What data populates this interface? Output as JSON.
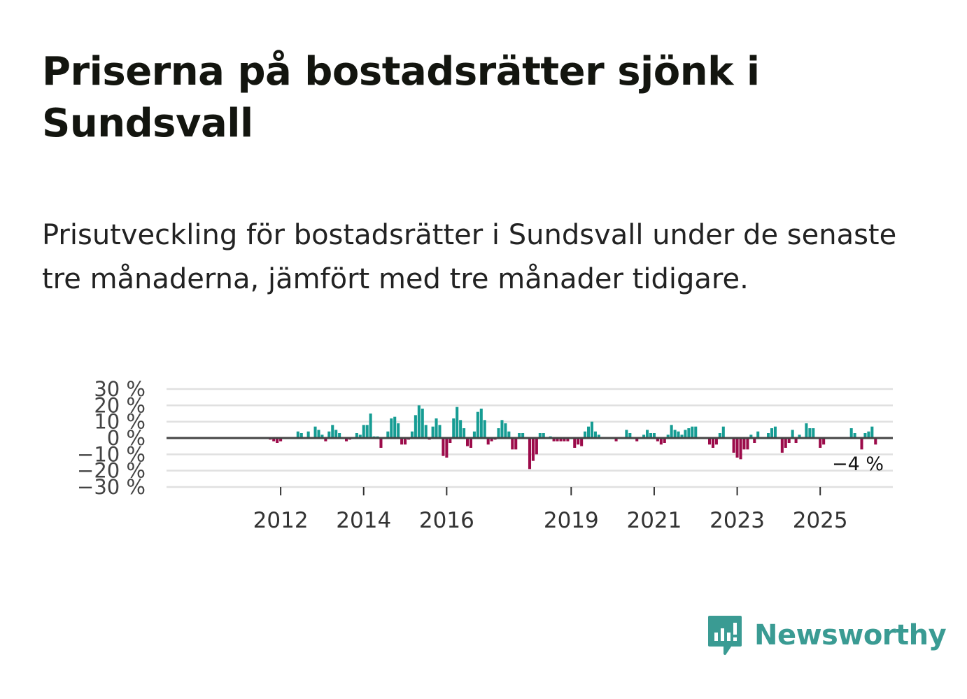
{
  "title": "Priserna på bostadsrätter sjönk i Sundsvall",
  "subtitle": "Prisutveckling för bostadsrätter i Sundsvall under de senaste tre månaderna, jämfört med tre månader tidigare.",
  "brand": {
    "name": "Newsworthy",
    "icon": "newsworthy-logo-icon"
  },
  "colors": {
    "positive": "#169c93",
    "negative": "#9c0b4a",
    "grid": "#e0e0e0",
    "zero_line": "#444444",
    "brand": "#3a9b93"
  },
  "chart_data": {
    "type": "bar",
    "title": "",
    "xlabel": "",
    "ylabel": "",
    "ylim": [
      -30,
      30
    ],
    "y_ticks": [
      30,
      20,
      10,
      0,
      -10,
      -20,
      -30
    ],
    "y_tick_labels": [
      "30 %",
      "20 %",
      "10 %",
      "0 %",
      "−10 %",
      "−20 %",
      "−30 %"
    ],
    "x_ticks": [
      2012,
      2014,
      2016,
      2019,
      2021,
      2023,
      2025
    ],
    "x_tick_labels": [
      "2012",
      "2014",
      "2016",
      "2019",
      "2021",
      "2023",
      "2025"
    ],
    "x_range_years": [
      2009.25,
      2026.75
    ],
    "start": "2011-10",
    "frequency": "monthly",
    "unit": "%",
    "values": [
      -1,
      -2,
      -3,
      -2,
      0,
      0,
      0,
      0,
      4,
      3,
      0,
      4,
      0,
      7,
      5,
      2,
      -2,
      4,
      8,
      5,
      3,
      0,
      -2,
      -1,
      0,
      3,
      2,
      8,
      8,
      15,
      1,
      1,
      -6,
      0,
      4,
      12,
      13,
      9,
      -4,
      -4,
      -1,
      4,
      14,
      20,
      18,
      8,
      -1,
      7,
      12,
      8,
      -11,
      -12,
      -3,
      12,
      19,
      11,
      6,
      -5,
      -6,
      4,
      16,
      18,
      11,
      -4,
      -2,
      -1,
      6,
      11,
      9,
      4,
      -7,
      -7,
      3,
      3,
      0,
      -19,
      -14,
      -10,
      3,
      3,
      0,
      1,
      -2,
      -2,
      -2,
      -2,
      -2,
      0,
      -6,
      -4,
      -5,
      4,
      7,
      10,
      4,
      2,
      0,
      0,
      0,
      0,
      -2,
      0,
      0,
      5,
      3,
      0,
      -2,
      0,
      2,
      5,
      3,
      3,
      -2,
      -4,
      -3,
      2,
      8,
      5,
      4,
      2,
      5,
      6,
      7,
      7,
      0,
      0,
      0,
      -4,
      -6,
      -4,
      3,
      7,
      0,
      0,
      -9,
      -12,
      -13,
      -7,
      -7,
      2,
      -3,
      4,
      0,
      0,
      3,
      6,
      7,
      0,
      -9,
      -6,
      -3,
      5,
      -3,
      2,
      0,
      9,
      6,
      6,
      0,
      -6,
      -4,
      0,
      0,
      0,
      0,
      0,
      0,
      0,
      6,
      3,
      0,
      -7,
      3,
      4,
      7,
      -4
    ],
    "last_value_label": "−4 %"
  }
}
